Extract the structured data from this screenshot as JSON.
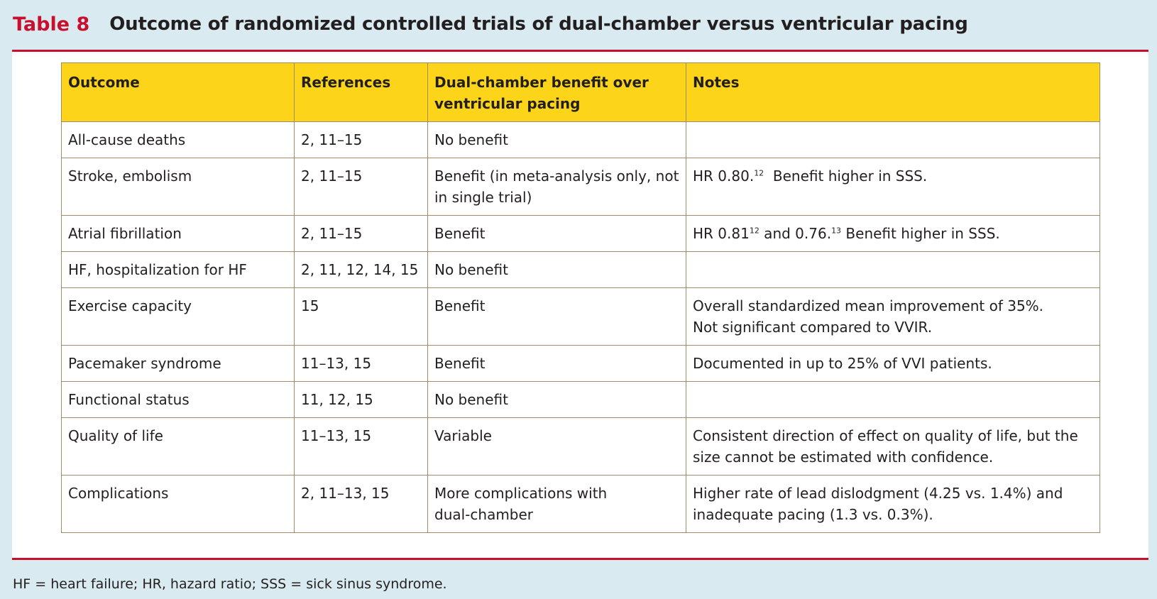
{
  "title": {
    "number": "Table 8",
    "text": "Outcome of randomized controlled trials of dual-chamber versus ventricular pacing"
  },
  "table": {
    "headers": [
      "Outcome",
      "References",
      "Dual-chamber benefit over ventricular pacing",
      "Notes"
    ],
    "rows": [
      {
        "outcome": "All-cause deaths",
        "references": "2, 11–15",
        "benefit": "No benefit",
        "notes": ""
      },
      {
        "outcome": "Stroke, embolism",
        "references": "2, 11–15",
        "benefit": "Benefit (in meta-analysis only, not in single trial)",
        "notes_a": "HR 0.80.",
        "notes_sup_a": "12",
        "notes_b": "  Benefit higher in SSS."
      },
      {
        "outcome": "Atrial fibrillation",
        "references": "2, 11–15",
        "benefit": "Benefit",
        "notes_a": "HR 0.81",
        "notes_sup_a": "12",
        "notes_b": " and 0.76.",
        "notes_sup_b": "13",
        "notes_c": " Benefit higher in SSS."
      },
      {
        "outcome": "HF, hospitalization for HF",
        "references": "2, 11, 12, 14, 15",
        "benefit": "No benefit",
        "notes": ""
      },
      {
        "outcome": "Exercise capacity",
        "references": "15",
        "benefit": "Benefit",
        "notes_line1": "Overall standardized mean improvement of 35%.",
        "notes_line2": "Not significant compared to VVIR."
      },
      {
        "outcome": "Pacemaker syndrome",
        "references": "11–13, 15",
        "benefit": "Benefit",
        "notes": "Documented in up to 25% of VVI patients."
      },
      {
        "outcome": "Functional status",
        "references": "11, 12, 15",
        "benefit": "No benefit",
        "notes": ""
      },
      {
        "outcome": "Quality of life",
        "references": "11–13, 15",
        "benefit": "Variable",
        "notes": "Consistent direction of effect on quality of life, but the size cannot be estimated with confidence."
      },
      {
        "outcome": "Complications",
        "references": "2, 11–13, 15",
        "benefit_line1": "More complications with",
        "benefit_line2": "dual-chamber",
        "notes": "Higher rate of lead dislodgment (4.25 vs. 1.4%) and inadequate pacing (1.3 vs. 0.3%)."
      }
    ]
  },
  "footnote": "HF = heart failure; HR, hazard ratio; SSS = sick sinus syndrome.",
  "colors": {
    "accent": "#c8102e",
    "header_fill": "#fcd41a",
    "background": "#d9ebf0",
    "border": "#a08c6a"
  }
}
